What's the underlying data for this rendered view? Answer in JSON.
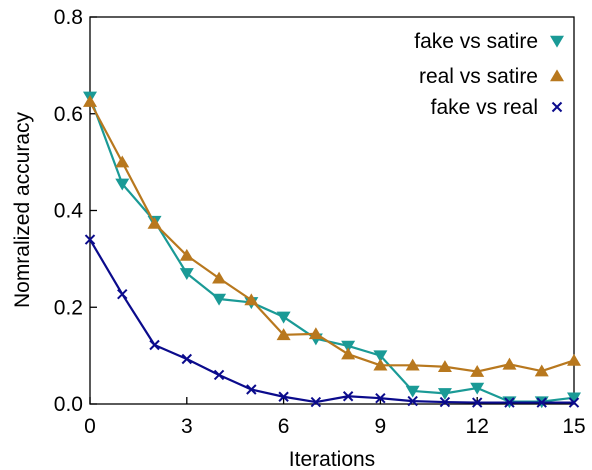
{
  "chart_data": {
    "type": "line",
    "xlabel": "Iterations",
    "ylabel": "Nomralized accuracy",
    "xlim": [
      0,
      15
    ],
    "ylim": [
      0,
      0.8
    ],
    "xticks": [
      "0",
      "3",
      "6",
      "9",
      "12",
      "15"
    ],
    "yticks": [
      "0.0",
      "0.2",
      "0.4",
      "0.6",
      "0.8"
    ],
    "grid": false,
    "legend_position": "top-right",
    "x": [
      0,
      1,
      2,
      3,
      4,
      5,
      6,
      7,
      8,
      9,
      10,
      11,
      12,
      13,
      14,
      15
    ],
    "series": [
      {
        "name": "fake vs satire",
        "color": "#1a9a96",
        "marker": "triangle-down",
        "values": [
          0.635,
          0.455,
          0.378,
          0.27,
          0.217,
          0.21,
          0.18,
          0.135,
          0.12,
          0.1,
          0.027,
          0.022,
          0.033,
          0.005,
          0.005,
          0.013
        ]
      },
      {
        "name": "real vs satire",
        "color": "#b8781e",
        "marker": "triangle-up",
        "values": [
          0.625,
          0.5,
          0.373,
          0.307,
          0.26,
          0.215,
          0.143,
          0.145,
          0.103,
          0.08,
          0.08,
          0.077,
          0.067,
          0.082,
          0.068,
          0.09
        ]
      },
      {
        "name": "fake vs real",
        "color": "#0b0b8c",
        "marker": "x",
        "values": [
          0.34,
          0.227,
          0.122,
          0.093,
          0.06,
          0.03,
          0.015,
          0.004,
          0.016,
          0.012,
          0.006,
          0.004,
          0.003,
          0.003,
          0.003,
          0.003
        ]
      }
    ]
  }
}
